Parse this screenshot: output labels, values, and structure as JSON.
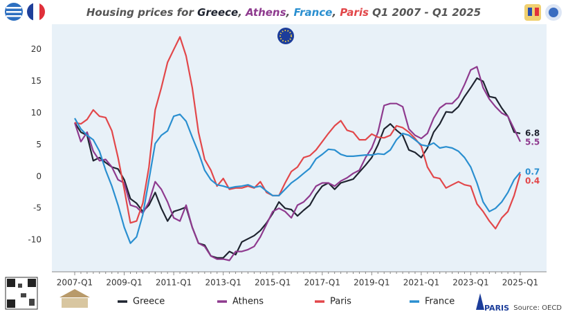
{
  "chart_data": {
    "type": "line",
    "title_parts": [
      {
        "text": "Housing prices for ",
        "color": "#555555"
      },
      {
        "text": "Greece",
        "color": "#1f2430"
      },
      {
        "text": ", ",
        "color": "#555555"
      },
      {
        "text": "Athens",
        "color": "#8e3a8e"
      },
      {
        "text": ", ",
        "color": "#555555"
      },
      {
        "text": "France",
        "color": "#2a8fd0"
      },
      {
        "text": ", ",
        "color": "#555555"
      },
      {
        "text": "Paris",
        "color": "#e2474a"
      },
      {
        "text": " Q1 2007 - Q1 2025",
        "color": "#555555"
      }
    ],
    "source": "Source: OECD",
    "categories": [
      "2007-Q1",
      null,
      null,
      null,
      null,
      null,
      null,
      null,
      "2009-Q1",
      null,
      null,
      null,
      null,
      null,
      null,
      null,
      "2011-Q1",
      null,
      null,
      null,
      null,
      null,
      null,
      null,
      "2013-Q1",
      null,
      null,
      null,
      null,
      null,
      null,
      null,
      "2015-Q1",
      null,
      null,
      null,
      null,
      null,
      null,
      null,
      "2017-Q1",
      null,
      null,
      null,
      null,
      null,
      null,
      null,
      "2019-Q1",
      null,
      null,
      null,
      null,
      null,
      null,
      null,
      "2021-Q1",
      null,
      null,
      null,
      null,
      null,
      null,
      null,
      "2023-Q1",
      null,
      null,
      null,
      null,
      null,
      null,
      null,
      "2025-Q1"
    ],
    "ylim": [
      -15,
      24
    ],
    "yticks": [
      -10,
      -5,
      0,
      5,
      10,
      15,
      20
    ],
    "grid": false,
    "series": [
      {
        "name": "Greece",
        "color": "#1f2430",
        "values": [
          8.5,
          7,
          6.5,
          2.5,
          3,
          2.2,
          1.5,
          1.2,
          -0.5,
          -3.5,
          -4.2,
          -5.5,
          -4.5,
          -2.5,
          -5,
          -7,
          -5.5,
          -5.2,
          -4.8,
          -8,
          -10.5,
          -10.8,
          -12.5,
          -12.8,
          -12.8,
          -11.8,
          -12.3,
          -10.3,
          -9.8,
          -9.3,
          -8.5,
          -7.3,
          -5.8,
          -4,
          -5,
          -5.2,
          -6.2,
          -5.3,
          -4.5,
          -2.8,
          -1.5,
          -1,
          -2,
          -1,
          -0.7,
          -0.4,
          0.7,
          1.8,
          3,
          5,
          7.5,
          8.3,
          7.3,
          6.5,
          4.2,
          3.8,
          3,
          4.5,
          7,
          8.3,
          10.2,
          10.1,
          11,
          12.6,
          14,
          15.5,
          15,
          12.6,
          12.4,
          10.8,
          9.5,
          7,
          6.8
        ]
      },
      {
        "name": "Athens",
        "color": "#8e3a8e",
        "values": [
          8.5,
          5.5,
          7,
          4,
          2.5,
          2.7,
          1.5,
          -0.5,
          -1,
          -4.5,
          -4.8,
          -5.8,
          -4,
          -0.8,
          -2,
          -4,
          -6.5,
          -7,
          -4.5,
          -8,
          -10.5,
          -11,
          -12.5,
          -13,
          -13,
          -13.2,
          -11.8,
          -11.8,
          -11.5,
          -11,
          -9.5,
          -7.5,
          -5.5,
          -5,
          -5.5,
          -6.5,
          -4.5,
          -4,
          -3,
          -1.5,
          -1,
          -1,
          -1.5,
          -0.7,
          -0.2,
          0.5,
          1,
          3,
          4.5,
          7,
          11.2,
          11.5,
          11.5,
          11,
          7.5,
          6.5,
          6,
          6.8,
          9.2,
          10.8,
          11.5,
          11.5,
          12.5,
          14.5,
          16.8,
          17.3,
          14,
          12.2,
          11,
          10,
          9.5,
          7.5,
          5.5
        ]
      },
      {
        "name": "Paris",
        "color": "#e2474a",
        "values": [
          8.5,
          8.3,
          9,
          10.5,
          9.5,
          9.3,
          7.2,
          3,
          -2,
          -7.3,
          -7,
          -4.2,
          1.5,
          10.5,
          14,
          18,
          20,
          22,
          19,
          14,
          7,
          2.7,
          1,
          -1.5,
          -0.3,
          -2,
          -1.8,
          -1.8,
          -1.5,
          -1.8,
          -0.8,
          -2.5,
          -3,
          -3,
          -1,
          0.8,
          1.5,
          3,
          3.3,
          4.2,
          5.5,
          6.8,
          8,
          8.8,
          7.3,
          7,
          5.8,
          5.8,
          6.7,
          6.2,
          6.1,
          6.5,
          8,
          7.7,
          7,
          6,
          4.8,
          1.5,
          -0.1,
          -0.3,
          -1.8,
          -1.3,
          -0.8,
          -1.3,
          -1.5,
          -4.3,
          -5.5,
          -7,
          -8.2,
          -6.5,
          -5.5,
          -3,
          0.4
        ]
      },
      {
        "name": "France",
        "color": "#2a8fd0",
        "values": [
          9.2,
          7.5,
          6.5,
          5.8,
          4,
          1,
          -1.5,
          -4.5,
          -8,
          -10.5,
          -9.5,
          -6,
          -0.5,
          5.2,
          6.5,
          7.2,
          9.5,
          9.8,
          8.7,
          6.2,
          3.8,
          1,
          -0.5,
          -1.3,
          -1.5,
          -1.8,
          -1.6,
          -1.5,
          -1.3,
          -1.7,
          -1.5,
          -2.3,
          -3,
          -3,
          -2,
          -1,
          -0.3,
          0.5,
          1.3,
          2.8,
          3.5,
          4.3,
          4.2,
          3.5,
          3.2,
          3.2,
          3.3,
          3.4,
          3.4,
          3.6,
          3.5,
          4.2,
          5.8,
          6.8,
          6.5,
          5.8,
          5,
          4.8,
          5.3,
          4.5,
          4.7,
          4.5,
          4,
          3,
          1.5,
          -1,
          -4,
          -5.5,
          -5,
          -4,
          -2.5,
          -0.5,
          0.7
        ]
      }
    ]
  }
}
